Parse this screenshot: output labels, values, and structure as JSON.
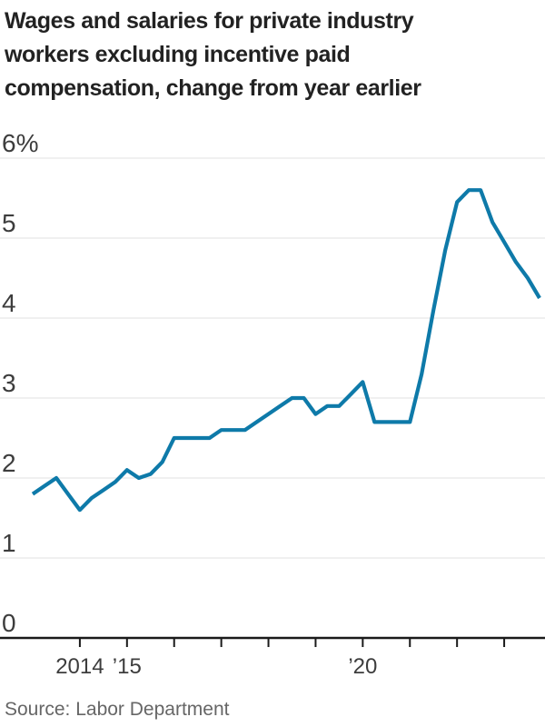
{
  "title_lines": [
    "Wages and salaries for private industry",
    "workers excluding incentive paid",
    "compensation, change from year earlier"
  ],
  "source": "Source: Labor Department",
  "colors": {
    "line": "#0e7aa9",
    "grid": "#e0e0e0",
    "axis": "#1a1a1a",
    "tick_label": "#3d3d3d",
    "title_text": "#222222",
    "source_text": "#666666"
  },
  "chart_data": {
    "type": "line",
    "title": "Wages and salaries for private industry workers excluding incentive paid compensation, change from year earlier",
    "xlabel": "",
    "ylabel": "",
    "unit": "percent",
    "frequency": "quarterly",
    "grid": "horizontal",
    "legend": "none",
    "ylim": [
      0,
      6
    ],
    "yticks": [
      0,
      1,
      2,
      3,
      4,
      5,
      6
    ],
    "ytick_labels": [
      "0",
      "1",
      "2",
      "3",
      "4",
      "5",
      "6%"
    ],
    "x": [
      "2013 Q1",
      "2013 Q2",
      "2013 Q3",
      "2013 Q4",
      "2014 Q1",
      "2014 Q2",
      "2014 Q3",
      "2014 Q4",
      "2015 Q1",
      "2015 Q2",
      "2015 Q3",
      "2015 Q4",
      "2016 Q1",
      "2016 Q2",
      "2016 Q3",
      "2016 Q4",
      "2017 Q1",
      "2017 Q2",
      "2017 Q3",
      "2017 Q4",
      "2018 Q1",
      "2018 Q2",
      "2018 Q3",
      "2018 Q4",
      "2019 Q1",
      "2019 Q2",
      "2019 Q3",
      "2019 Q4",
      "2020 Q1",
      "2020 Q2",
      "2020 Q3",
      "2020 Q4",
      "2021 Q1",
      "2021 Q2",
      "2021 Q3",
      "2021 Q4",
      "2022 Q1",
      "2022 Q2",
      "2022 Q3",
      "2022 Q4",
      "2023 Q1",
      "2023 Q2",
      "2023 Q3",
      "2023 Q4"
    ],
    "series": [
      {
        "name": "Change from year earlier",
        "values": [
          1.8,
          1.9,
          2.0,
          1.8,
          1.6,
          1.75,
          1.85,
          1.95,
          2.1,
          2.0,
          2.05,
          2.2,
          2.5,
          2.5,
          2.5,
          2.5,
          2.6,
          2.6,
          2.6,
          2.7,
          2.8,
          2.9,
          3.0,
          3.0,
          2.8,
          2.9,
          2.9,
          3.05,
          3.2,
          2.7,
          2.7,
          2.7,
          2.7,
          3.3,
          4.1,
          4.85,
          5.45,
          5.6,
          5.6,
          5.2,
          4.95,
          4.7,
          4.5,
          4.25
        ]
      }
    ],
    "x_year_ticks": [
      {
        "year": 2014,
        "label": "2014"
      },
      {
        "year": 2015,
        "label": "’15"
      },
      {
        "year": 2016,
        "label": ""
      },
      {
        "year": 2017,
        "label": ""
      },
      {
        "year": 2018,
        "label": ""
      },
      {
        "year": 2019,
        "label": ""
      },
      {
        "year": 2020,
        "label": "’20"
      },
      {
        "year": 2021,
        "label": ""
      },
      {
        "year": 2022,
        "label": ""
      },
      {
        "year": 2023,
        "label": ""
      }
    ]
  }
}
